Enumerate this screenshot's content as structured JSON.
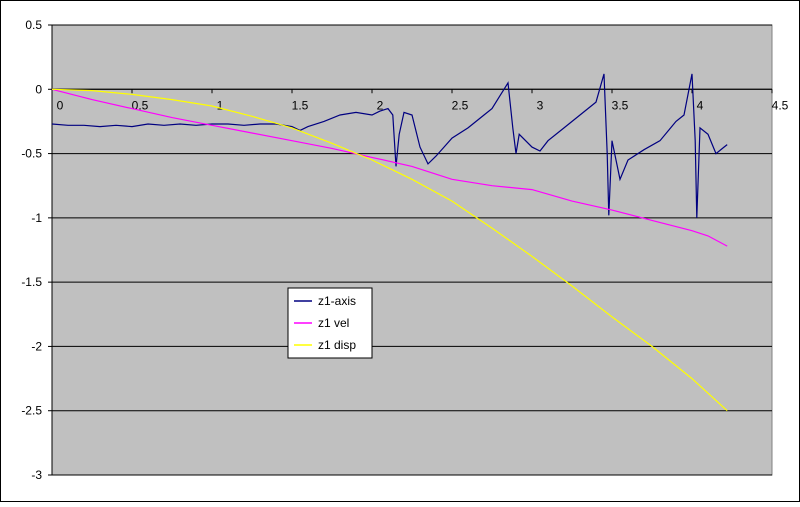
{
  "chart_data": {
    "type": "line",
    "xlim": [
      0,
      4.5
    ],
    "xticks": [
      0,
      0.5,
      1,
      1.5,
      2,
      2.5,
      3,
      3.5,
      4,
      4.5
    ],
    "ylim": [
      -3,
      0.5
    ],
    "yticks": [
      0.5,
      0,
      -0.5,
      -1,
      -1.5,
      -2,
      -2.5,
      -3
    ],
    "grid": true,
    "legend": "inside-center-left",
    "series": [
      {
        "name": "z1-axis",
        "color": "#000080",
        "x": [
          0,
          0.1,
          0.2,
          0.3,
          0.4,
          0.5,
          0.6,
          0.7,
          0.8,
          0.9,
          1.0,
          1.1,
          1.2,
          1.3,
          1.4,
          1.5,
          1.55,
          1.6,
          1.7,
          1.8,
          1.9,
          2.0,
          2.05,
          2.1,
          2.13,
          2.15,
          2.17,
          2.2,
          2.25,
          2.3,
          2.35,
          2.4,
          2.45,
          2.5,
          2.6,
          2.7,
          2.75,
          2.8,
          2.85,
          2.88,
          2.9,
          2.92,
          3.0,
          3.05,
          3.1,
          3.2,
          3.3,
          3.4,
          3.45,
          3.47,
          3.48,
          3.5,
          3.55,
          3.6,
          3.7,
          3.8,
          3.9,
          3.95,
          4.0,
          4.02,
          4.03,
          4.05,
          4.1,
          4.15,
          4.2,
          4.22
        ],
        "values": [
          -0.27,
          -0.28,
          -0.28,
          -0.29,
          -0.28,
          -0.29,
          -0.27,
          -0.28,
          -0.27,
          -0.28,
          -0.27,
          -0.27,
          -0.28,
          -0.27,
          -0.27,
          -0.29,
          -0.32,
          -0.29,
          -0.25,
          -0.2,
          -0.18,
          -0.2,
          -0.17,
          -0.15,
          -0.2,
          -0.6,
          -0.35,
          -0.18,
          -0.2,
          -0.45,
          -0.58,
          -0.52,
          -0.45,
          -0.38,
          -0.3,
          -0.2,
          -0.15,
          -0.05,
          0.05,
          -0.3,
          -0.5,
          -0.35,
          -0.45,
          -0.48,
          -0.4,
          -0.3,
          -0.2,
          -0.1,
          0.12,
          -0.5,
          -0.98,
          -0.4,
          -0.7,
          -0.55,
          -0.47,
          -0.4,
          -0.25,
          -0.2,
          0.12,
          -0.4,
          -1.0,
          -0.3,
          -0.35,
          -0.5,
          -0.45,
          -0.43
        ]
      },
      {
        "name": "z1 vel",
        "color": "#ff00ff",
        "x": [
          0,
          0.25,
          0.5,
          0.75,
          1.0,
          1.25,
          1.5,
          1.75,
          2.0,
          2.25,
          2.5,
          2.75,
          3.0,
          3.25,
          3.5,
          3.75,
          4.0,
          4.1,
          4.22
        ],
        "values": [
          0,
          -0.08,
          -0.15,
          -0.22,
          -0.28,
          -0.34,
          -0.4,
          -0.46,
          -0.53,
          -0.6,
          -0.7,
          -0.75,
          -0.78,
          -0.87,
          -0.94,
          -1.02,
          -1.1,
          -1.14,
          -1.22
        ]
      },
      {
        "name": "z1 disp",
        "color": "#ffff00",
        "x": [
          0,
          0.25,
          0.5,
          0.75,
          1.0,
          1.25,
          1.5,
          1.75,
          2.0,
          2.25,
          2.5,
          2.75,
          3.0,
          3.25,
          3.5,
          3.75,
          4.0,
          4.22
        ],
        "values": [
          0,
          -0.01,
          -0.04,
          -0.08,
          -0.13,
          -0.21,
          -0.3,
          -0.42,
          -0.55,
          -0.7,
          -0.87,
          -1.08,
          -1.3,
          -1.53,
          -1.77,
          -2.0,
          -2.25,
          -2.5
        ]
      }
    ]
  }
}
